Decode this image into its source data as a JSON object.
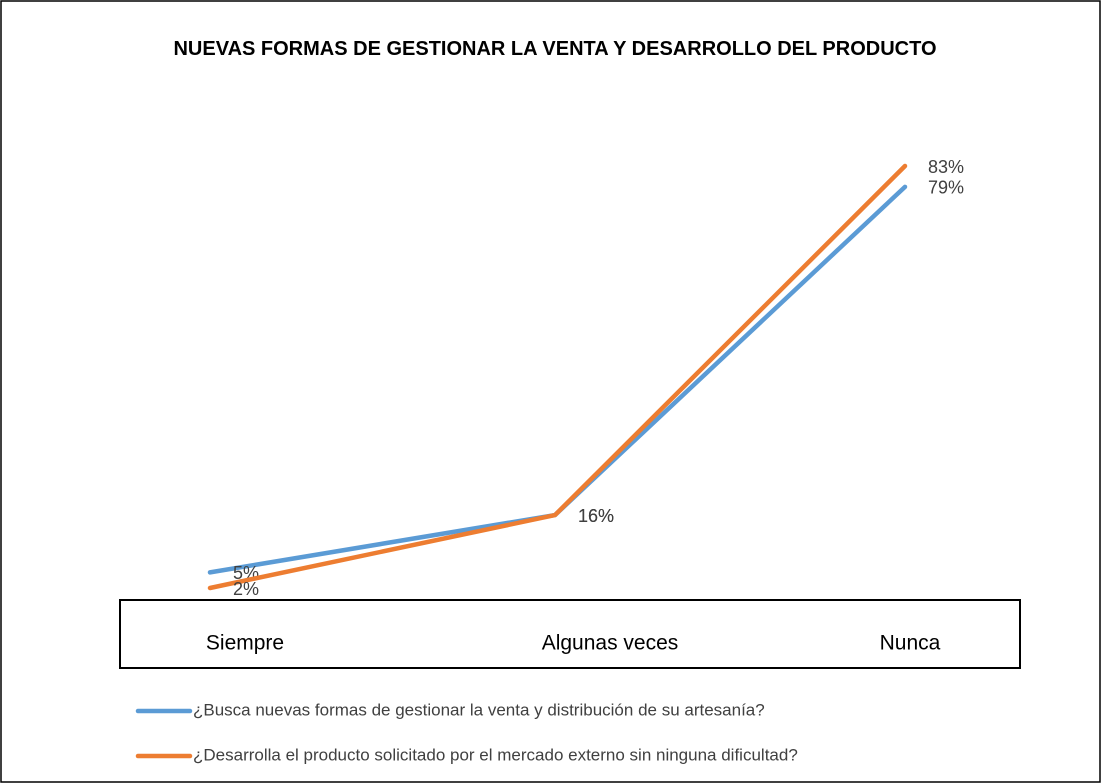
{
  "chart_data": {
    "type": "line",
    "title": "NUEVAS FORMAS DE GESTIONAR LA VENTA Y DESARROLLO DEL PRODUCTO",
    "categories": [
      "Siempre",
      "Algunas veces",
      "Nunca"
    ],
    "series": [
      {
        "name": "¿Busca nuevas formas de gestionar la venta y distribución de su artesanía?",
        "color": "#5b9bd5",
        "values": [
          5,
          16,
          79
        ],
        "value_labels": [
          "5%",
          "16%",
          "79%"
        ]
      },
      {
        "name": "¿Desarrolla el producto solicitado por el mercado externo sin ninguna dificultad?",
        "color": "#ed7d31",
        "values": [
          2,
          16,
          83
        ],
        "value_labels": [
          "2%",
          "16%",
          "83%"
        ]
      }
    ],
    "legend": "bottom"
  }
}
